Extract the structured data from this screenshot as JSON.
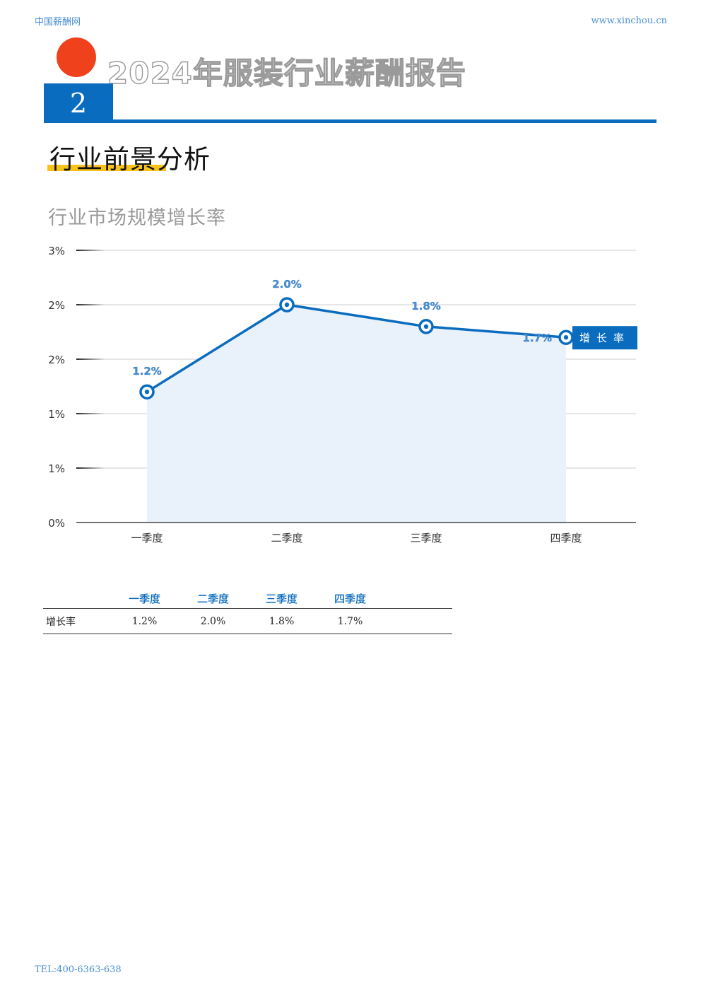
{
  "header": {
    "left": "中国薪酬网",
    "right": "www.xinchou.cn"
  },
  "report_title": "2024年服装行业薪酬报告",
  "chapter_number": "2",
  "section_title": "行业前景分析",
  "chart_title": "行业市场规模增长率",
  "chart_data": {
    "type": "area",
    "categories": [
      "一季度",
      "二季度",
      "三季度",
      "四季度"
    ],
    "series": [
      {
        "name": "增长率",
        "values": [
          1.2,
          2.0,
          1.8,
          1.7
        ],
        "labels": [
          "1.2%",
          "2.0%",
          "1.8%",
          "1.7%"
        ]
      }
    ],
    "y_tick_labels": [
      "0%",
      "1%",
      "1%",
      "2%",
      "2%",
      "3%"
    ],
    "ylim": [
      0,
      2.5
    ],
    "grid": true,
    "legend": "right, next to last point",
    "colors": {
      "line": "#0a6cbf",
      "fill": "#e9f1fa"
    }
  },
  "table": {
    "headers": [
      "",
      "一季度",
      "二季度",
      "三季度",
      "四季度",
      ""
    ],
    "rows": [
      {
        "label": "增长率",
        "values": [
          "1.2%",
          "2.0%",
          "1.8%",
          "1.7%"
        ]
      }
    ]
  },
  "footer": "TEL:400-6363-638"
}
